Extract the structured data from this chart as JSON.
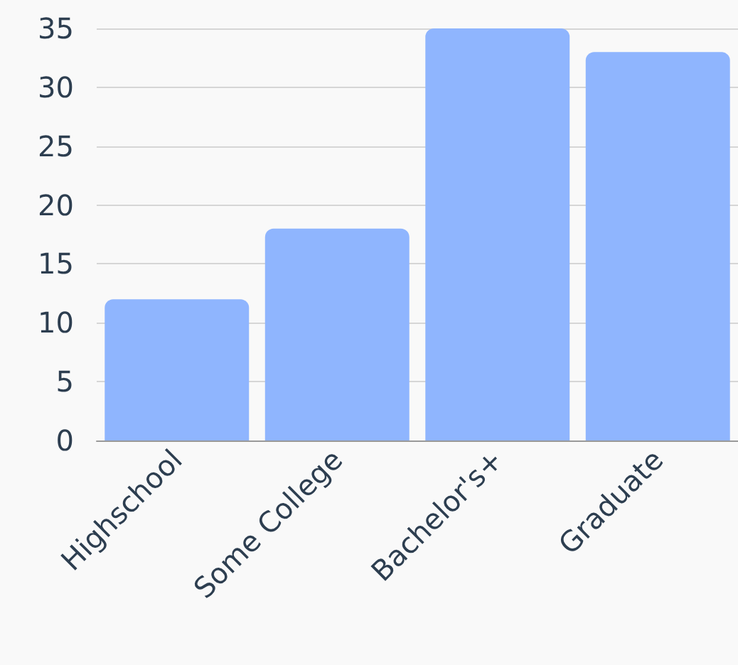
{
  "chart_data": {
    "type": "bar",
    "categories": [
      "Highschool",
      "Some College",
      "Bachelor's+",
      "Graduate"
    ],
    "values": [
      12,
      18,
      35,
      33
    ],
    "color": "#8fb5fe",
    "ylim": [
      0,
      35
    ],
    "yticks": [
      0,
      5,
      10,
      15,
      20,
      25,
      30,
      35
    ],
    "grid": "y"
  }
}
